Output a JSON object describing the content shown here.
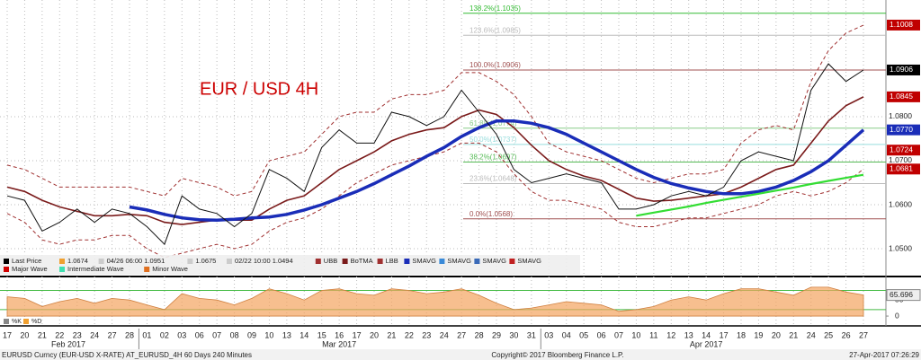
{
  "chart_data": [
    {
      "type": "line",
      "title": "EUR / USD 4H",
      "categories": [
        "17",
        "20",
        "21",
        "22",
        "23",
        "24",
        "27",
        "28",
        "01",
        "02",
        "03",
        "06",
        "07",
        "08",
        "09",
        "10",
        "13",
        "14",
        "15",
        "16",
        "17",
        "20",
        "21",
        "22",
        "23",
        "24",
        "27",
        "28",
        "29",
        "30",
        "31",
        "03",
        "04",
        "05",
        "06",
        "07",
        "10",
        "11",
        "12",
        "13",
        "14",
        "17",
        "18",
        "19",
        "20",
        "21",
        "24",
        "25",
        "26",
        "27"
      ],
      "months": [
        "Feb 2017",
        "Mar 2017",
        "Apr 2017"
      ],
      "ylim": [
        1.0443,
        1.1065
      ],
      "yticks": [
        {
          "value": 1.05,
          "label": "1.0500"
        },
        {
          "value": 1.06,
          "label": "1.0600"
        },
        {
          "value": 1.07,
          "label": "1.0700"
        },
        {
          "value": 1.08,
          "label": "1.0800"
        }
      ],
      "grid": true,
      "series": [
        {
          "color": "#a03030",
          "dash": true,
          "width": 1,
          "values": [
            1.069,
            1.068,
            1.066,
            1.064,
            1.064,
            1.064,
            1.064,
            1.064,
            1.063,
            1.062,
            1.066,
            1.065,
            1.064,
            1.062,
            1.063,
            1.07,
            1.071,
            1.072,
            1.076,
            1.08,
            1.081,
            1.081,
            1.084,
            1.085,
            1.085,
            1.086,
            1.09,
            1.09,
            1.088,
            1.085,
            1.08,
            1.074,
            1.072,
            1.071,
            1.07,
            1.068,
            1.066,
            1.065,
            1.066,
            1.067,
            1.067,
            1.068,
            1.074,
            1.077,
            1.078,
            1.077,
            1.088,
            1.095,
            1.099,
            1.1008
          ]
        },
        {
          "color": "#a03030",
          "dash": true,
          "width": 1,
          "values": [
            1.058,
            1.056,
            1.052,
            1.051,
            1.052,
            1.052,
            1.053,
            1.053,
            1.05,
            1.048,
            1.049,
            1.05,
            1.051,
            1.05,
            1.051,
            1.054,
            1.056,
            1.057,
            1.059,
            1.062,
            1.065,
            1.067,
            1.069,
            1.07,
            1.071,
            1.072,
            1.074,
            1.074,
            1.072,
            1.067,
            1.063,
            1.061,
            1.061,
            1.06,
            1.059,
            1.056,
            1.055,
            1.055,
            1.056,
            1.057,
            1.057,
            1.058,
            1.059,
            1.06,
            1.062,
            1.063,
            1.062,
            1.063,
            1.065,
            1.0681
          ]
        },
        {
          "color": "#7a1a1a",
          "dash": false,
          "width": 1.6,
          "values": [
            1.064,
            1.063,
            1.061,
            1.0595,
            1.0585,
            1.0575,
            1.0575,
            1.0578,
            1.0575,
            1.056,
            1.0555,
            1.056,
            1.0565,
            1.0565,
            1.0565,
            1.059,
            1.061,
            1.062,
            1.065,
            1.068,
            1.07,
            1.072,
            1.0745,
            1.076,
            1.077,
            1.0775,
            1.08,
            1.0815,
            1.0805,
            1.0775,
            1.0735,
            1.07,
            1.068,
            1.0665,
            1.0655,
            1.0635,
            1.0615,
            1.0608,
            1.061,
            1.0615,
            1.062,
            1.0625,
            1.064,
            1.066,
            1.068,
            1.069,
            1.074,
            1.079,
            1.0825,
            1.0845
          ]
        },
        {
          "color": "#1a2db8",
          "dash": false,
          "width": 3.5,
          "values": [
            null,
            null,
            null,
            null,
            null,
            null,
            null,
            1.0595,
            1.0588,
            1.0578,
            1.057,
            1.0566,
            1.0565,
            1.0567,
            1.057,
            1.0572,
            1.0578,
            1.0588,
            1.06,
            1.0615,
            1.063,
            1.0648,
            1.0668,
            1.0688,
            1.071,
            1.073,
            1.0755,
            1.0775,
            1.079,
            1.079,
            1.0785,
            1.0775,
            1.076,
            1.074,
            1.072,
            1.07,
            1.068,
            1.0662,
            1.0648,
            1.0638,
            1.063,
            1.0625,
            1.0625,
            1.063,
            1.064,
            1.0655,
            1.0675,
            1.07,
            1.0735,
            1.077
          ]
        },
        {
          "color": "#33dd33",
          "dash": false,
          "width": 2.2,
          "values": [
            null,
            null,
            null,
            null,
            null,
            null,
            null,
            null,
            null,
            null,
            null,
            null,
            null,
            null,
            null,
            null,
            null,
            null,
            null,
            null,
            null,
            null,
            null,
            null,
            null,
            null,
            null,
            null,
            null,
            null,
            null,
            null,
            null,
            null,
            null,
            null,
            1.0575,
            1.0582,
            1.0589,
            1.0596,
            1.0604,
            1.0611,
            1.0618,
            1.0625,
            1.0632,
            1.0639,
            1.0647,
            1.0654,
            1.0661,
            1.0668
          ]
        },
        {
          "color": "#111111",
          "dash": false,
          "width": 1,
          "values": [
            1.062,
            1.061,
            1.054,
            1.056,
            1.059,
            1.056,
            1.059,
            1.058,
            1.055,
            1.051,
            1.062,
            1.059,
            1.058,
            1.055,
            1.058,
            1.068,
            1.066,
            1.063,
            1.073,
            1.077,
            1.074,
            1.074,
            1.081,
            1.08,
            1.078,
            1.08,
            1.086,
            1.081,
            1.076,
            1.068,
            1.065,
            1.066,
            1.067,
            1.066,
            1.065,
            1.059,
            1.059,
            1.06,
            1.062,
            1.063,
            1.062,
            1.064,
            1.07,
            1.072,
            1.071,
            1.07,
            1.086,
            1.092,
            1.088,
            1.0906
          ]
        }
      ],
      "levels": [
        {
          "value": 1.1035,
          "label": "138.2%(1.1035)",
          "color": "#33bb33"
        },
        {
          "value": 1.0985,
          "label": "123.6%(1.0985)",
          "color": "#bbbbbb"
        },
        {
          "value": 1.0906,
          "label": "100.0%(1.0906)",
          "color": "#a05050"
        },
        {
          "value": 1.0774,
          "label": "61.8%(1.0774)",
          "color": "#88cc88"
        },
        {
          "value": 1.0737,
          "label": "50.0%(1.0737)",
          "color": "#99dddd"
        },
        {
          "value": 1.0697,
          "label": "38.2%(1.0697)",
          "color": "#55bb55"
        },
        {
          "value": 1.0648,
          "label": "23.6%(1.0648)",
          "color": "#bbbbbb"
        },
        {
          "value": 1.0568,
          "label": "0.0%(1.0568)",
          "color": "#a05050"
        }
      ],
      "tags": [
        {
          "value": 1.1008,
          "label": "1.1008",
          "color": "#c00000"
        },
        {
          "value": 1.0906,
          "label": "1.0906",
          "color": "#000000"
        },
        {
          "value": 1.0845,
          "label": "1.0845",
          "color": "#c00000"
        },
        {
          "value": 1.077,
          "label": "1.0770",
          "color": "#1a2db8"
        },
        {
          "value": 1.0724,
          "label": "1.0724",
          "color": "#c00000"
        },
        {
          "value": 1.0681,
          "label": "1.0681",
          "color": "#c00000"
        }
      ],
      "legend": [
        {
          "label": "Last Price",
          "color": "#000000"
        },
        {
          "label": "1.0674",
          "color": "#f0a030"
        },
        {
          "label": "04/26 06:00 1.0951",
          "color": "#cccccc"
        },
        {
          "label": "1.0675",
          "color": "#cccccc"
        },
        {
          "label": "02/22 10:00 1.0494",
          "color": "#cccccc"
        },
        {
          "label": "UBB",
          "color": "#a03030"
        },
        {
          "label": "BoTMA",
          "color": "#7a1a1a"
        },
        {
          "label": "LBB",
          "color": "#a03030"
        },
        {
          "label": "SMAVG",
          "color": "#1a2db8"
        },
        {
          "label": "SMAVG",
          "color": "#3a8ad8"
        },
        {
          "label": "SMAVG",
          "color": "#3a6ab8"
        },
        {
          "label": "SMAVG",
          "color": "#c02020"
        },
        {
          "label": "Major Wave",
          "color": "#d00000"
        },
        {
          "label": "Intermediate Wave",
          "color": "#40e0b0"
        },
        {
          "label": "Minor Wave",
          "color": "#e07020"
        }
      ],
      "footer": [
        "EURUSD Curncy (EUR-USD X-RATE) AT_EURUSD_4H 60 Days 240 Minutes",
        "Copyright© 2017 Bloomberg Finance L.P.",
        "27-Apr-2017 07:26:29"
      ]
    },
    {
      "type": "area",
      "color": "#f4a460",
      "ylim": [
        -25,
        115
      ],
      "yticks": [
        0,
        50
      ],
      "levels": [
        20,
        80
      ],
      "values": [
        60,
        55,
        30,
        45,
        55,
        40,
        55,
        50,
        35,
        20,
        70,
        55,
        50,
        35,
        55,
        85,
        70,
        50,
        80,
        85,
        70,
        65,
        85,
        80,
        70,
        75,
        85,
        65,
        40,
        20,
        25,
        35,
        45,
        40,
        35,
        15,
        20,
        30,
        50,
        60,
        50,
        70,
        85,
        85,
        75,
        65,
        90,
        90,
        75,
        65.696
      ],
      "legend": [
        {
          "label": "%K",
          "color": "#888888"
        },
        {
          "label": "%D",
          "color": "#f0a030"
        }
      ]
    }
  ]
}
